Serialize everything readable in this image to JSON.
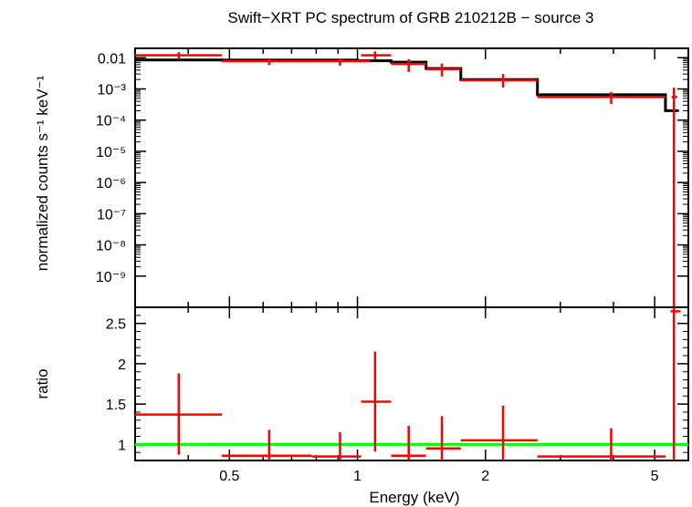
{
  "chart_data": [
    {
      "type": "scatter",
      "panel": "spectrum",
      "title": "Swift−XRT PC spectrum of GRB 210212B − source 3",
      "ylabel": "normalized counts s⁻¹ keV⁻¹",
      "xscale": "log",
      "yscale": "log",
      "xlim": [
        0.3,
        6.0
      ],
      "ylim": [
        1e-10,
        0.02
      ],
      "y_tick_labels": [
        "0.01",
        "10⁻³",
        "10⁻⁴",
        "10⁻⁵",
        "10⁻⁶",
        "10⁻⁷",
        "10⁻⁸",
        "10⁻⁹"
      ],
      "y_tick_values": [
        0.01,
        0.001,
        0.0001,
        1e-05,
        1e-06,
        1e-07,
        1e-08,
        1e-09
      ],
      "series": [
        {
          "color": "#ff0000",
          "points": [
            {
              "x": 0.38,
              "xlo": 0.3,
              "xhi": 0.48,
              "y": 0.012,
              "ylo": 0.009,
              "yhi": 0.015
            },
            {
              "x": 0.62,
              "xlo": 0.48,
              "xhi": 0.9,
              "y": 0.0077,
              "ylo": 0.0058,
              "yhi": 0.0095
            },
            {
              "x": 0.91,
              "xlo": 0.9,
              "xhi": 1.07,
              "y": 0.0077,
              "ylo": 0.0055,
              "yhi": 0.0095
            },
            {
              "x": 1.1,
              "xlo": 1.02,
              "xhi": 1.2,
              "y": 0.012,
              "ylo": 0.009,
              "yhi": 0.016
            },
            {
              "x": 1.32,
              "xlo": 1.2,
              "xhi": 1.45,
              "y": 0.0063,
              "ylo": 0.0035,
              "yhi": 0.009
            },
            {
              "x": 1.58,
              "xlo": 1.45,
              "xhi": 1.75,
              "y": 0.0043,
              "ylo": 0.0025,
              "yhi": 0.0065
            },
            {
              "x": 2.2,
              "xlo": 1.75,
              "xhi": 2.65,
              "y": 0.0019,
              "ylo": 0.0011,
              "yhi": 0.003
            },
            {
              "x": 3.95,
              "xlo": 2.65,
              "xhi": 5.3,
              "y": 0.00055,
              "ylo": 0.00033,
              "yhi": 0.0008
            },
            {
              "x": 5.55,
              "xlo": 5.48,
              "xhi": 5.65,
              "y": 0.00055,
              "ylo": 1e-10,
              "yhi": 0.0011
            }
          ]
        }
      ],
      "model": {
        "color": "#000000",
        "steps": [
          {
            "xlo": 0.3,
            "xhi": 0.48,
            "y": 0.0085
          },
          {
            "xlo": 0.48,
            "xhi": 0.9,
            "y": 0.0084
          },
          {
            "xlo": 0.9,
            "xhi": 1.0,
            "y": 0.0084
          },
          {
            "xlo": 1.0,
            "xhi": 1.2,
            "y": 0.008
          },
          {
            "xlo": 1.2,
            "xhi": 1.45,
            "y": 0.0072
          },
          {
            "xlo": 1.45,
            "xhi": 1.75,
            "y": 0.0045
          },
          {
            "xlo": 1.75,
            "xhi": 2.65,
            "y": 0.002
          },
          {
            "xlo": 2.65,
            "xhi": 5.3,
            "y": 0.00065
          },
          {
            "xlo": 5.3,
            "xhi": 5.7,
            "y": 0.0002
          }
        ]
      }
    },
    {
      "type": "scatter",
      "panel": "ratio",
      "xlabel": "Energy (keV)",
      "ylabel": "ratio",
      "xscale": "log",
      "xlim": [
        0.3,
        6.0
      ],
      "ylim": [
        0.8,
        2.7
      ],
      "x_tick_labels": [
        "0.5",
        "1",
        "2",
        "5"
      ],
      "x_tick_values": [
        0.5,
        1,
        2,
        5
      ],
      "y_tick_labels": [
        "1",
        "1.5",
        "2",
        "2.5"
      ],
      "y_tick_values": [
        1,
        1.5,
        2,
        2.5
      ],
      "reference_line": {
        "y": 1,
        "color": "#00ff00"
      },
      "series": [
        {
          "color": "#ff0000",
          "points": [
            {
              "x": 0.38,
              "xlo": 0.3,
              "xhi": 0.48,
              "y": 1.37,
              "ylo": 0.87,
              "yhi": 1.88
            },
            {
              "x": 0.62,
              "xlo": 0.48,
              "xhi": 0.78,
              "y": 0.86,
              "ylo": 0.8,
              "yhi": 1.18
            },
            {
              "x": 0.91,
              "xlo": 0.78,
              "xhi": 1.02,
              "y": 0.85,
              "ylo": 0.8,
              "yhi": 1.15
            },
            {
              "x": 1.1,
              "xlo": 1.02,
              "xhi": 1.2,
              "y": 1.53,
              "ylo": 0.91,
              "yhi": 2.15
            },
            {
              "x": 1.32,
              "xlo": 1.2,
              "xhi": 1.45,
              "y": 0.86,
              "ylo": 0.8,
              "yhi": 1.23
            },
            {
              "x": 1.58,
              "xlo": 1.45,
              "xhi": 1.75,
              "y": 0.95,
              "ylo": 0.8,
              "yhi": 1.35
            },
            {
              "x": 2.2,
              "xlo": 1.75,
              "xhi": 2.65,
              "y": 1.05,
              "ylo": 0.8,
              "yhi": 1.48
            },
            {
              "x": 3.95,
              "xlo": 2.65,
              "xhi": 5.3,
              "y": 0.85,
              "ylo": 0.8,
              "yhi": 1.2
            },
            {
              "x": 5.55,
              "xlo": 5.45,
              "xhi": 5.75,
              "y": 2.65,
              "ylo": 0.8,
              "yhi": 2.7
            }
          ]
        }
      ]
    }
  ]
}
